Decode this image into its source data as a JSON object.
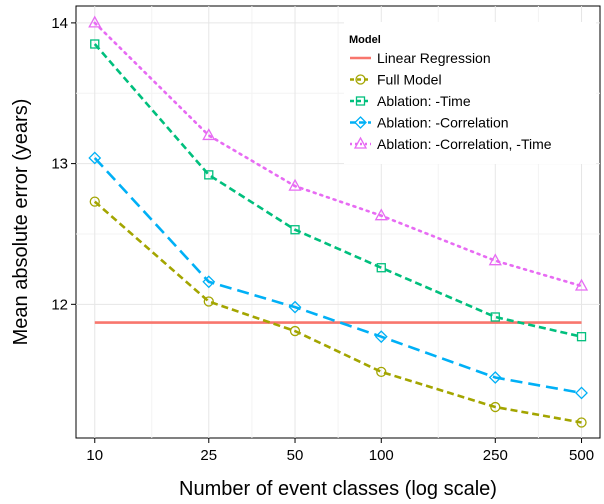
{
  "chart_data": {
    "type": "line",
    "xlabel": "Number of event classes (log scale)",
    "ylabel": "Mean absolute error (years)",
    "x_scale": "log",
    "x": [
      10,
      25,
      50,
      100,
      250,
      500
    ],
    "x_tick_labels": [
      "10",
      "25",
      "50",
      "100",
      "250",
      "500"
    ],
    "y_ticks": [
      12,
      13,
      14
    ],
    "y_tick_labels": [
      "12",
      "13",
      "14"
    ],
    "xlim": [
      8.6,
      580
    ],
    "ylim": [
      11.05,
      14.12
    ],
    "grid": true,
    "legend": {
      "title": "Model",
      "placement": "top-right"
    },
    "series": [
      {
        "name": "Linear Regression",
        "color": "#F8766D",
        "line": "solid",
        "marker": "none",
        "values": [
          11.87,
          11.87,
          11.87,
          11.87,
          11.87,
          11.87
        ]
      },
      {
        "name": "Full Model",
        "color": "#A3A500",
        "line": "dashed",
        "marker": "circle",
        "values": [
          12.73,
          12.02,
          11.81,
          11.52,
          11.27,
          11.16
        ]
      },
      {
        "name": "Ablation: -Time",
        "color": "#00BF7D",
        "line": "dashed",
        "marker": "square",
        "values": [
          13.85,
          12.92,
          12.53,
          12.26,
          11.91,
          11.77
        ]
      },
      {
        "name": "Ablation: -Correlation",
        "color": "#00B0F6",
        "line": "longdash",
        "marker": "diamond",
        "values": [
          13.04,
          12.16,
          11.98,
          11.77,
          11.48,
          11.37
        ]
      },
      {
        "name": "Ablation: -Correlation, -Time",
        "color": "#E76BF3",
        "line": "dotted",
        "marker": "triangle",
        "values": [
          14.0,
          13.2,
          12.84,
          12.63,
          12.31,
          12.13
        ]
      }
    ]
  }
}
